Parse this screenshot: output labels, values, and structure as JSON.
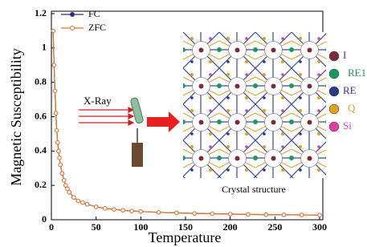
{
  "chart_data": {
    "type": "scatter-line",
    "xlabel": "Temperature",
    "ylabel": "Magnetic Susceptibility",
    "xlim": [
      0,
      300
    ],
    "xticks": [
      0,
      50,
      100,
      150,
      200,
      250,
      300
    ],
    "ylim": [
      0,
      1.2
    ],
    "yticks": [
      0,
      0.2,
      0.4,
      0.6,
      0.8,
      1,
      1.2
    ],
    "legend": "upper left",
    "x": [
      2,
      3,
      4,
      5,
      6,
      7,
      8,
      9,
      10,
      12,
      14,
      16,
      18,
      20,
      25,
      30,
      35,
      40,
      50,
      60,
      70,
      80,
      90,
      100,
      120,
      140,
      160,
      180,
      200,
      220,
      240,
      260,
      280,
      300
    ],
    "series": [
      {
        "name": "FC",
        "color": "#2b2f7a",
        "marker": "filled",
        "values": [
          1.1,
          0.9,
          0.75,
          0.62,
          0.52,
          0.45,
          0.4,
          0.36,
          0.32,
          0.27,
          0.23,
          0.2,
          0.18,
          0.16,
          0.13,
          0.11,
          0.1,
          0.09,
          0.075,
          0.066,
          0.06,
          0.055,
          0.051,
          0.048,
          0.043,
          0.04,
          0.037,
          0.035,
          0.033,
          0.031,
          0.03,
          0.029,
          0.028,
          0.027
        ]
      },
      {
        "name": "ZFC",
        "color": "#e8742a",
        "marker": "open",
        "values": [
          1.1,
          0.9,
          0.75,
          0.62,
          0.52,
          0.45,
          0.4,
          0.36,
          0.32,
          0.27,
          0.23,
          0.2,
          0.18,
          0.16,
          0.13,
          0.11,
          0.1,
          0.09,
          0.075,
          0.066,
          0.06,
          0.055,
          0.051,
          0.048,
          0.043,
          0.04,
          0.037,
          0.035,
          0.033,
          0.031,
          0.03,
          0.029,
          0.028,
          0.027
        ]
      }
    ],
    "annotations": [
      "X-Ray",
      "Crystal structure"
    ],
    "atom_legend": [
      {
        "label": "I",
        "color": "#7a2a3a"
      },
      {
        "label": "RE1",
        "color": "#1a9a5a"
      },
      {
        "label": "RE",
        "color": "#2a3a8a"
      },
      {
        "label": "Q",
        "color": "#e0a020"
      },
      {
        "label": "Si",
        "color": "#e040a0"
      }
    ]
  }
}
